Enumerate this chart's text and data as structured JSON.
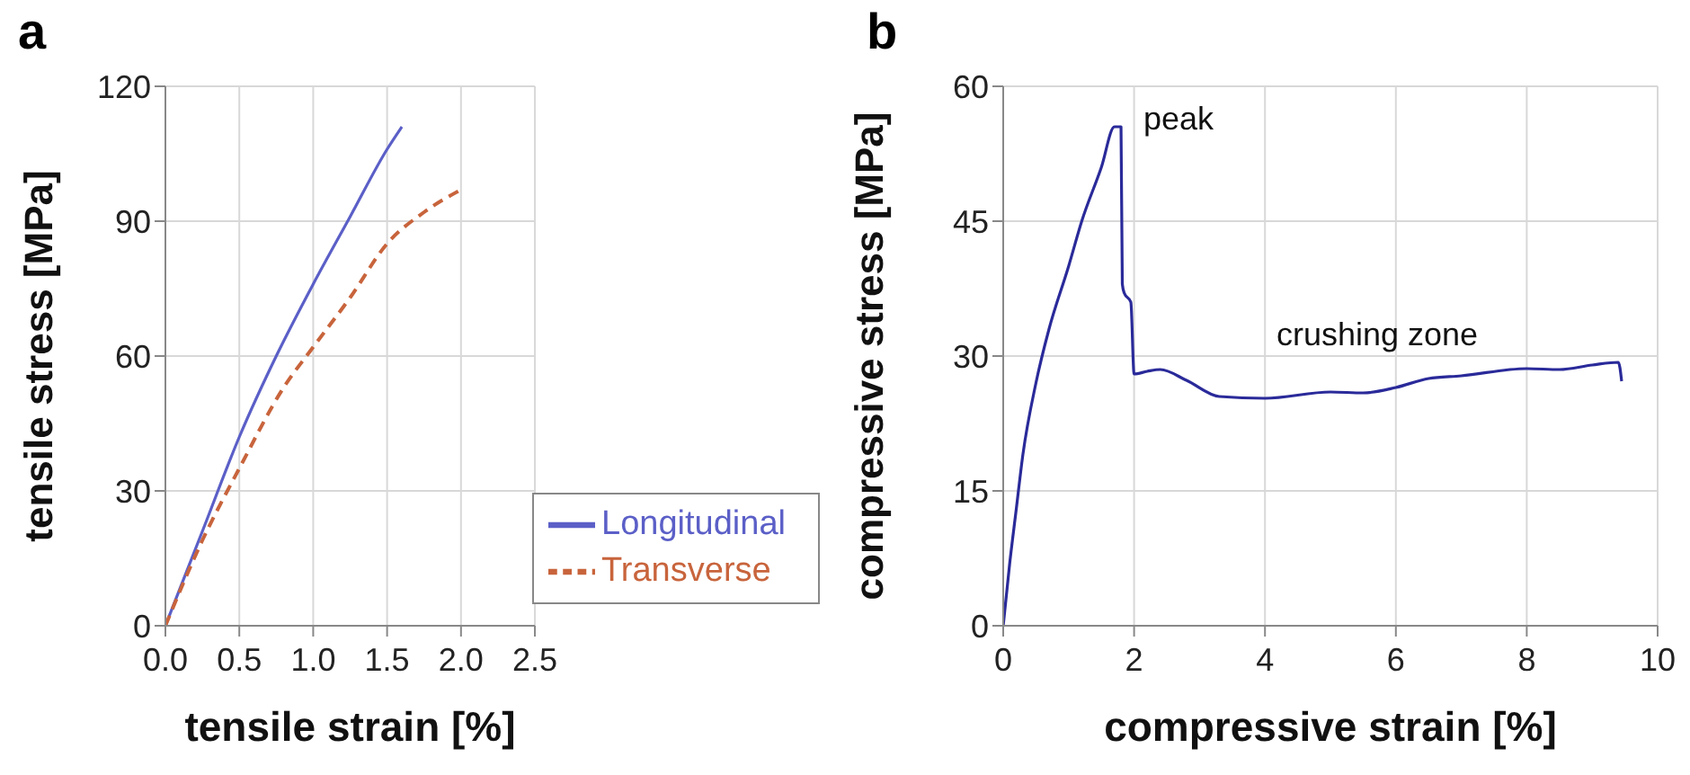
{
  "chart_data": [
    {
      "type": "line",
      "title": "a",
      "xlabel": "tensile strain [%]",
      "ylabel": "tensile stress [MPa]",
      "xlim": [
        0,
        2.5
      ],
      "xticks": [
        {
          "value": 0,
          "label": "0.0"
        },
        0.5,
        {
          "value": 1,
          "label": "1.0"
        },
        1.5,
        {
          "value": 2,
          "label": "2.0"
        },
        2.5
      ],
      "ylim": [
        0,
        120
      ],
      "yticks": [
        0,
        30,
        60,
        90,
        120
      ],
      "grid": true,
      "legend": "bottom right",
      "marker": "none",
      "series": [
        {
          "name": "Longitudinal",
          "color": "#5b5fc7",
          "line_style": "solid",
          "x": [
            0,
            0.25,
            0.5,
            0.75,
            1.0,
            1.25,
            1.5,
            1.6
          ],
          "values": [
            0,
            21,
            42,
            60,
            76,
            91,
            106,
            111
          ]
        },
        {
          "name": "Transverse",
          "color": "#c8643c",
          "line_style": "dashed",
          "x": [
            0,
            0.25,
            0.5,
            0.8,
            1.0,
            1.25,
            1.5,
            1.75,
            2.0
          ],
          "values": [
            0,
            19,
            35,
            53,
            62,
            73,
            85,
            92,
            97
          ]
        }
      ]
    },
    {
      "type": "line",
      "title": "b",
      "xlabel": "compressive strain [%]",
      "ylabel": "compressive stress  [MPa]",
      "xlim": [
        0,
        10
      ],
      "xticks": [
        0,
        2,
        4,
        6,
        8,
        10
      ],
      "ylim": [
        0,
        60
      ],
      "yticks": [
        0,
        15,
        30,
        45,
        60
      ],
      "grid": true,
      "marker": "none",
      "annotations": [
        "peak",
        "crushing zone"
      ],
      "series": [
        {
          "color": "#2a2a9a",
          "line_style": "solid",
          "x": [
            0,
            0.1,
            0.2,
            0.3,
            0.5,
            0.7,
            1.0,
            1.2,
            1.5,
            1.7,
            1.8,
            1.82,
            1.85,
            1.95,
            2.0,
            2.2,
            2.4,
            2.8,
            3.3,
            4,
            5,
            5.5,
            6,
            6.5,
            7,
            8,
            8.5,
            9,
            9.4,
            9.45
          ],
          "values": [
            0,
            7,
            13,
            19,
            27,
            33,
            40,
            45,
            51,
            55.5,
            55.5,
            38,
            37,
            36,
            28,
            28.3,
            28.5,
            27.3,
            25.5,
            25.3,
            26,
            25.9,
            26.5,
            27.5,
            27.8,
            28.6,
            28.5,
            29,
            29.3,
            27.2
          ]
        }
      ]
    }
  ]
}
